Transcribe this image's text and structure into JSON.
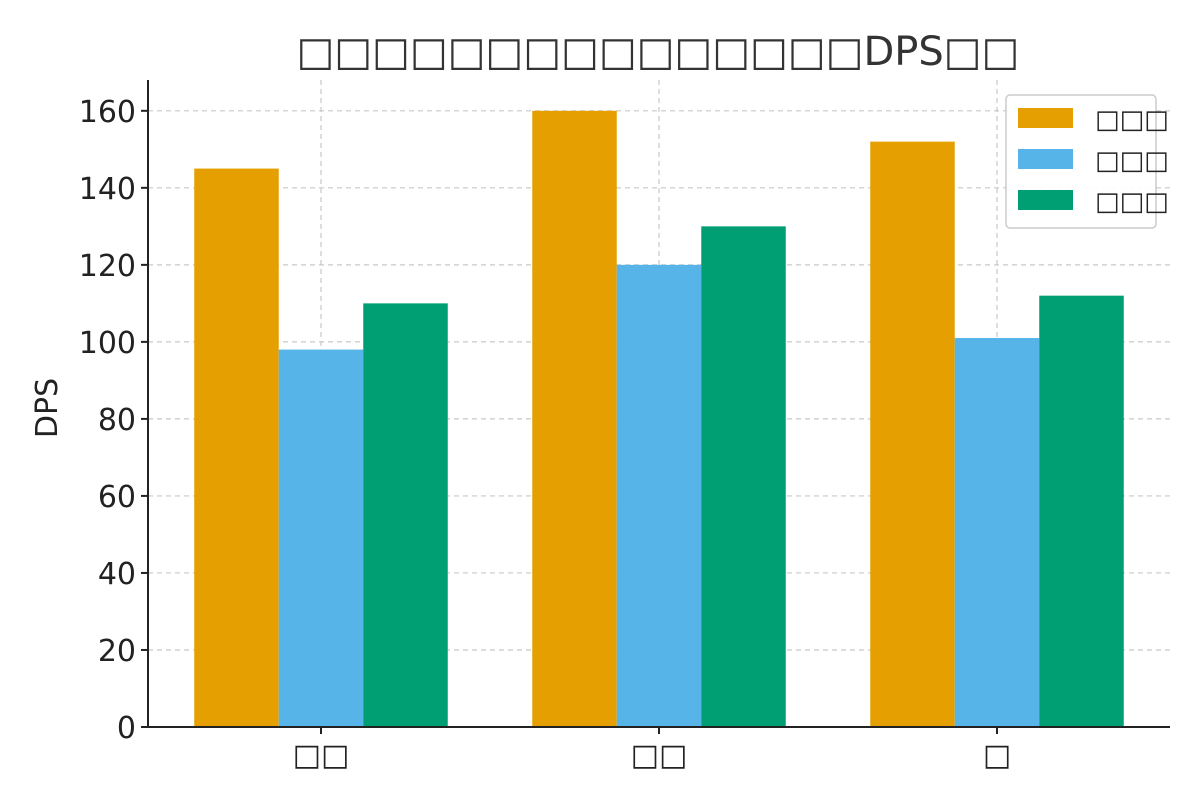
{
  "colors": {
    "series": [
      "#E69F00",
      "#56B4E9",
      "#009E73"
    ],
    "grid": "#c8c8c8",
    "axis": "#222222",
    "legend_border": "#cccccc"
  },
  "chart_data": {
    "type": "bar",
    "title": "□□□□□□□□□□□□□□□DPS□□",
    "xlabel": "",
    "ylabel": "DPS",
    "categories": [
      "□□",
      "□□",
      "□"
    ],
    "series": [
      {
        "name": "□□□",
        "values": [
          145,
          160,
          152
        ]
      },
      {
        "name": "□□□",
        "values": [
          98,
          120,
          101
        ]
      },
      {
        "name": "□□□",
        "values": [
          110,
          130,
          112
        ]
      }
    ],
    "ylim": [
      0,
      168
    ],
    "yticks": [
      0,
      20,
      40,
      60,
      80,
      100,
      120,
      140,
      160
    ],
    "grid": true,
    "legend": "top-right"
  }
}
